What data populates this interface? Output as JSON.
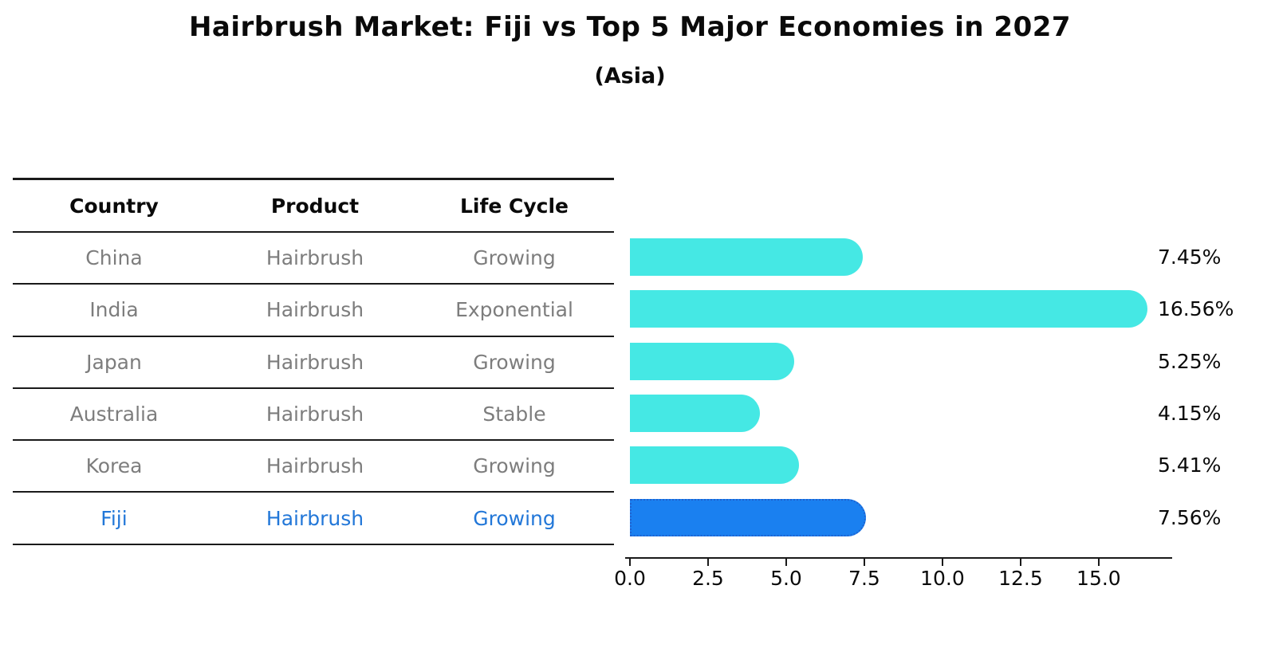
{
  "title": "Hairbrush Market: Fiji vs Top 5 Major Economies in 2027",
  "subtitle": "(Asia)",
  "table": {
    "headers": [
      "Country",
      "Product",
      "Life Cycle"
    ],
    "rows": [
      {
        "country": "China",
        "product": "Hairbrush",
        "life_cycle": "Growing",
        "highlight": false
      },
      {
        "country": "India",
        "product": "Hairbrush",
        "life_cycle": "Exponential",
        "highlight": false
      },
      {
        "country": "Japan",
        "product": "Hairbrush",
        "life_cycle": "Growing",
        "highlight": false
      },
      {
        "country": "Australia",
        "product": "Hairbrush",
        "life_cycle": "Stable",
        "highlight": false
      },
      {
        "country": "Korea",
        "product": "Hairbrush",
        "life_cycle": "Growing",
        "highlight": false
      },
      {
        "country": "Fiji",
        "product": "Hairbrush",
        "life_cycle": "Growing",
        "highlight": true
      }
    ]
  },
  "chart_data": {
    "type": "bar",
    "orientation": "horizontal",
    "title": "Hairbrush Market: Fiji vs Top 5 Major Economies in 2027",
    "subtitle": "(Asia)",
    "categories": [
      "China",
      "India",
      "Japan",
      "Australia",
      "Korea",
      "Fiji"
    ],
    "values": [
      7.45,
      16.56,
      5.25,
      4.15,
      5.41,
      7.56
    ],
    "value_labels": [
      "7.45%",
      "16.56%",
      "5.25%",
      "4.15%",
      "5.41%",
      "7.56%"
    ],
    "highlight_category": "Fiji",
    "xlabel": "",
    "ylabel": "",
    "xlim": [
      0,
      17.35
    ],
    "xticks": [
      0.0,
      2.5,
      5.0,
      7.5,
      10.0,
      12.5,
      15.0
    ],
    "xtick_labels": [
      "0.0",
      "2.5",
      "5.0",
      "7.5",
      "10.0",
      "12.5",
      "15.0"
    ],
    "grid": false,
    "legend": false,
    "colors": {
      "bar": "#45e8e4",
      "highlight_bar": "#1a80f0",
      "highlight_border": "#1e62d0",
      "row_text": "#7d7d7d",
      "highlight_text": "#2277d8",
      "axis": "#1a1a1a"
    }
  }
}
